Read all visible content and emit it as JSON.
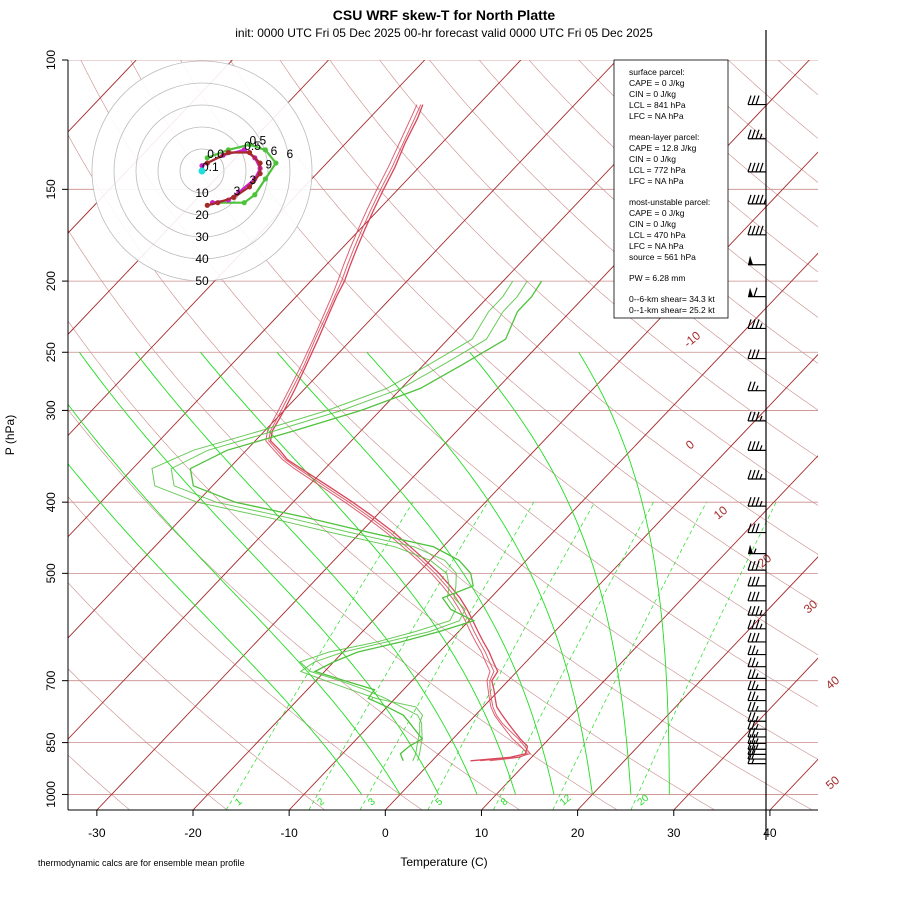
{
  "title": "CSU WRF skew-T for North Platte",
  "subtitle": "init: 0000 UTC Fri 05 Dec 2025     00-hr forecast valid 0000 UTC Fri 05 Dec 2025",
  "footnote": "thermodynamic calcs are for ensemble mean profile",
  "colors": {
    "temperature": "#d9465a",
    "dewpoint": "#4fc23c",
    "isotherm": "#a52a2a",
    "isobar": "#c98c8c",
    "dry_adiabat": "#c98c8c",
    "moist_adiabat": "#22dd22",
    "mixing_ratio": "#22dd22",
    "hodograph_ring": "#bbbbbb",
    "wind_barb": "#000000"
  },
  "info_box": {
    "surface": {
      "header": "surface parcel:",
      "cape": "CAPE = 0 J/kg",
      "cin": "CIN = 0 J/kg",
      "lcl": "LCL = 841 hPa",
      "lfc": "LFC = NA hPa"
    },
    "mixed": {
      "header": "mean-layer parcel:",
      "cape": "CAPE = 12.8 J/kg",
      "cin": "CIN = 0 J/kg",
      "lcl": "LCL = 772 hPa",
      "lfc": "LFC = NA hPa"
    },
    "mu": {
      "header": "most-unstable parcel:",
      "cape": "CAPE = 0 J/kg",
      "cin": "CIN = 0 J/kg",
      "lcl": "LCL = 470 hPa",
      "lfc": "LFC = NA hPa",
      "source": "source = 561 hPa"
    },
    "pw": "PW =  6.28 mm",
    "shear6": "0--6-km shear= 34.3 kt",
    "shear1": "0--1-km shear= 25.2 kt"
  },
  "chart_data": {
    "type": "line",
    "title": "CSU WRF skew-T for North Platte",
    "subtitle": "init: 0000 UTC Fri 05 Dec 2025     00-hr forecast valid 0000 UTC Fri 05 Dec 2025",
    "xlabel": "Temperature (C)",
    "ylabel": "P (hPa)",
    "x_ticks": [
      -30,
      -20,
      -10,
      0,
      10,
      20,
      30,
      40
    ],
    "x_tick_labels": [
      "-30",
      "-20",
      "-10",
      "0",
      "10",
      "20",
      "30",
      "40"
    ],
    "y_scale": "log",
    "y_ticks": [
      100,
      150,
      200,
      250,
      300,
      400,
      500,
      700,
      850,
      1000
    ],
    "y_tick_labels": [
      "100",
      "150",
      "200",
      "250",
      "300",
      "400",
      "500",
      "700",
      "850",
      "1000"
    ],
    "xlim": [
      -33,
      45
    ],
    "ylim": [
      1050,
      100
    ],
    "isotherm_labels": [
      "-10",
      "0",
      "10",
      "20",
      "30",
      "40",
      "50"
    ],
    "mixing_ratio_labels": [
      "1",
      "2",
      "3",
      "5",
      "8",
      "12",
      "20"
    ],
    "series": [
      {
        "kind": "temperature",
        "members": [
          {
            "p": [
              900,
              890,
              880,
              860,
              840,
              820,
              800,
              780,
              760,
              740,
              720,
              700,
              680,
              660,
              640,
              620,
              600,
              580,
              560,
              540,
              520,
              500,
              480,
              460,
              440,
              420,
              400,
              380,
              360,
              350,
              340,
              330,
              320,
              300,
              280,
              260,
              240,
              220,
              210,
              200,
              190,
              180,
              170,
              160,
              150,
              140,
              130,
              120,
              115
            ],
            "t": [
              4.0,
              7.8,
              9.0,
              8.5,
              7.0,
              5.6,
              4.2,
              2.8,
              1.4,
              0.4,
              -0.6,
              -1.7,
              -2.0,
              -3.4,
              -4.8,
              -6.4,
              -8.0,
              -9.6,
              -11.3,
              -13.2,
              -15.4,
              -17.8,
              -20.5,
              -23.4,
              -26.5,
              -30.0,
              -33.8,
              -38.0,
              -42.5,
              -44.8,
              -46.5,
              -48.4,
              -49.2,
              -50.0,
              -51.0,
              -52.2,
              -53.5,
              -55.0,
              -55.8,
              -56.5,
              -57.5,
              -58.5,
              -59.5,
              -60.5,
              -61.5,
              -62.5,
              -63.8,
              -65.0,
              -65.8
            ]
          },
          {
            "p": [
              900,
              890,
              880,
              860,
              840,
              820,
              800,
              780,
              760,
              740,
              720,
              700,
              680,
              660,
              640,
              620,
              600,
              580,
              560,
              540,
              520,
              500,
              480,
              460,
              440,
              420,
              400,
              380,
              360,
              350,
              340,
              330,
              320,
              300,
              280,
              260,
              240,
              220,
              210,
              200,
              190,
              180,
              170,
              160,
              150,
              140,
              130,
              120,
              115
            ],
            "t": [
              5.0,
              8.5,
              9.5,
              8.2,
              6.8,
              5.2,
              3.6,
              2.2,
              1.0,
              0.0,
              -1.0,
              -1.9,
              -2.4,
              -3.8,
              -5.2,
              -6.8,
              -8.4,
              -10.0,
              -11.7,
              -13.6,
              -15.8,
              -18.2,
              -20.9,
              -23.8,
              -26.9,
              -30.4,
              -34.2,
              -38.4,
              -42.8,
              -45.0,
              -46.8,
              -48.6,
              -49.4,
              -50.3,
              -51.3,
              -52.4,
              -53.8,
              -55.2,
              -56.0,
              -56.8,
              -57.8,
              -58.8,
              -59.8,
              -60.8,
              -61.8,
              -62.8,
              -64.0,
              -65.3,
              -66.0
            ]
          },
          {
            "p": [
              900,
              890,
              880,
              860,
              840,
              820,
              800,
              780,
              760,
              740,
              720,
              700,
              680,
              660,
              640,
              620,
              600,
              580,
              560,
              540,
              520,
              500,
              480,
              460,
              440,
              420,
              400,
              380,
              360,
              350,
              340,
              330,
              320,
              300,
              280,
              260,
              240,
              220,
              210,
              200,
              190,
              180,
              170,
              160,
              150,
              140,
              130,
              120,
              115
            ],
            "t": [
              6.0,
              8.8,
              9.2,
              7.8,
              6.2,
              4.8,
              3.4,
              2.0,
              0.8,
              -0.2,
              -1.2,
              -2.2,
              -2.8,
              -4.2,
              -5.6,
              -7.2,
              -8.8,
              -10.4,
              -12.1,
              -14.0,
              -16.2,
              -18.6,
              -21.3,
              -24.2,
              -27.3,
              -30.8,
              -34.6,
              -38.8,
              -43.2,
              -45.3,
              -47.1,
              -48.9,
              -49.7,
              -50.6,
              -51.6,
              -52.7,
              -54.0,
              -55.5,
              -56.3,
              -57.2,
              -58.2,
              -59.2,
              -60.2,
              -61.2,
              -62.2,
              -63.2,
              -64.4,
              -65.7,
              -66.4
            ]
          }
        ]
      },
      {
        "kind": "dewpoint",
        "members": [
          {
            "p": [
              900,
              880,
              860,
              840,
              820,
              800,
              780,
              760,
              740,
              720,
              700,
              680,
              660,
              640,
              620,
              600,
              580,
              560,
              540,
              520,
              500,
              480,
              460,
              440,
              420,
              400,
              380,
              360,
              340,
              320,
              300,
              280,
              260,
              240,
              220,
              210,
              200
            ],
            "t": [
              -3.0,
              -4.0,
              -3.8,
              -3.2,
              -4.6,
              -6.0,
              -7.5,
              -10.0,
              -12.8,
              -13.0,
              -17.0,
              -21.0,
              -20.0,
              -18.5,
              -15.0,
              -12.0,
              -9.5,
              -13.0,
              -15.0,
              -13.0,
              -14.5,
              -17.0,
              -21.0,
              -29.0,
              -37.0,
              -46.0,
              -52.0,
              -54.0,
              -52.0,
              -47.0,
              -42.0,
              -38.0,
              -36.0,
              -34.0,
              -35.5,
              -35.5,
              -36.0
            ]
          },
          {
            "p": [
              900,
              880,
              860,
              840,
              820,
              800,
              780,
              760,
              740,
              720,
              700,
              680,
              660,
              640,
              620,
              600,
              580,
              560,
              540,
              520,
              500,
              480,
              460,
              440,
              420,
              400,
              380,
              360,
              340,
              320,
              300,
              280,
              260,
              240,
              220,
              210,
              200
            ],
            "t": [
              -2.0,
              -2.4,
              -3.0,
              -3.6,
              -4.2,
              -5.0,
              -5.5,
              -7.0,
              -12.0,
              -15.5,
              -19.0,
              -22.5,
              -22.0,
              -20.0,
              -16.5,
              -13.0,
              -11.0,
              -11.5,
              -13.8,
              -14.8,
              -16.0,
              -18.5,
              -23.0,
              -31.0,
              -39.0,
              -48.0,
              -54.0,
              -56.0,
              -54.0,
              -49.0,
              -44.0,
              -40.0,
              -38.0,
              -36.0,
              -37.0,
              -37.0,
              -37.5
            ]
          },
          {
            "p": [
              900,
              880,
              860,
              840,
              820,
              800,
              780,
              760,
              740,
              720,
              700,
              680,
              660,
              640,
              620,
              600,
              580,
              560,
              540,
              520,
              500,
              480,
              460,
              440,
              420,
              400,
              380,
              360,
              340,
              320,
              300,
              280,
              260,
              240,
              220,
              210,
              200
            ],
            "t": [
              -1.5,
              -2.0,
              -2.6,
              -3.2,
              -4.0,
              -4.8,
              -6.0,
              -8.5,
              -11.0,
              -14.0,
              -17.5,
              -21.5,
              -23.5,
              -21.5,
              -17.5,
              -14.5,
              -12.0,
              -12.5,
              -14.5,
              -15.5,
              -17.0,
              -20.0,
              -25.0,
              -33.0,
              -41.0,
              -50.0,
              -56.0,
              -58.0,
              -55.5,
              -50.5,
              -45.5,
              -41.5,
              -39.5,
              -37.5,
              -38.5,
              -38.5,
              -39.0
            ]
          }
        ]
      }
    ],
    "wind_profile": [
      {
        "p": 115,
        "speed": 30
      },
      {
        "p": 128,
        "speed": 35
      },
      {
        "p": 142,
        "speed": 40
      },
      {
        "p": 157,
        "speed": 45
      },
      {
        "p": 173,
        "speed": 40
      },
      {
        "p": 190,
        "speed": 50
      },
      {
        "p": 210,
        "speed": 60
      },
      {
        "p": 232,
        "speed": 35
      },
      {
        "p": 255,
        "speed": 30
      },
      {
        "p": 282,
        "speed": 25
      },
      {
        "p": 310,
        "speed": 35
      },
      {
        "p": 340,
        "speed": 35
      },
      {
        "p": 372,
        "speed": 35
      },
      {
        "p": 405,
        "speed": 35
      },
      {
        "p": 440,
        "speed": 30
      },
      {
        "p": 470,
        "speed": 55
      },
      {
        "p": 495,
        "speed": 30
      },
      {
        "p": 520,
        "speed": 30
      },
      {
        "p": 545,
        "speed": 30
      },
      {
        "p": 570,
        "speed": 35
      },
      {
        "p": 595,
        "speed": 35
      },
      {
        "p": 620,
        "speed": 30
      },
      {
        "p": 645,
        "speed": 25
      },
      {
        "p": 670,
        "speed": 25
      },
      {
        "p": 695,
        "speed": 25
      },
      {
        "p": 720,
        "speed": 25
      },
      {
        "p": 745,
        "speed": 25
      },
      {
        "p": 770,
        "speed": 25
      },
      {
        "p": 795,
        "speed": 25
      },
      {
        "p": 815,
        "speed": 25
      },
      {
        "p": 835,
        "speed": 25
      },
      {
        "p": 852,
        "speed": 25
      },
      {
        "p": 868,
        "speed": 25
      },
      {
        "p": 882,
        "speed": 20
      },
      {
        "p": 895,
        "speed": 20
      },
      {
        "p": 908,
        "speed": 15
      }
    ],
    "hodograph": {
      "ring_labels": [
        "10",
        "20",
        "30",
        "40",
        "50"
      ],
      "ring_values_kt": [
        10,
        20,
        30,
        40,
        50
      ],
      "storm_motion": {
        "u": 0,
        "v": 0
      },
      "traces": [
        {
          "color": "#4fc23c",
          "points": [
            [
              1,
              5
            ],
            [
              5,
              8
            ],
            [
              9,
              10
            ],
            [
              12,
              8
            ],
            [
              14,
              3
            ],
            [
              12,
              -3
            ],
            [
              10,
              -9
            ],
            [
              8,
              -12
            ],
            [
              2,
              -12
            ]
          ]
        },
        {
          "color": "#cc22cc",
          "points": [
            [
              0,
              2
            ],
            [
              4,
              6
            ],
            [
              8,
              8
            ],
            [
              10,
              5
            ],
            [
              11,
              1
            ],
            [
              10,
              -3
            ],
            [
              7,
              -8
            ],
            [
              5,
              -11
            ],
            [
              2,
              -12
            ]
          ]
        },
        {
          "color": "#a52a2a",
          "points": [
            [
              1,
              3
            ],
            [
              5,
              7
            ],
            [
              9,
              7
            ],
            [
              11,
              3
            ],
            [
              11,
              -1
            ],
            [
              9,
              -6
            ],
            [
              6,
              -10
            ],
            [
              3,
              -12
            ],
            [
              1,
              -13
            ]
          ]
        }
      ],
      "point_labels": [
        {
          "text": "0.5",
          "color": "#cc22cc",
          "u": 8,
          "v": 8
        },
        {
          "text": "0.5",
          "color": "#4fc23c",
          "u": 9,
          "v": 10
        },
        {
          "text": "6",
          "color": "#4fc23c",
          "u": 16,
          "v": 5
        },
        {
          "text": "6",
          "color": "#cc22cc",
          "u": 13,
          "v": 6
        },
        {
          "text": "9",
          "color": "#cc22cc",
          "u": 12,
          "v": 1
        },
        {
          "text": "3",
          "color": "#cc22cc",
          "u": 9,
          "v": -5
        },
        {
          "text": "3",
          "color": "#4fc23c",
          "u": 6,
          "v": -9
        },
        {
          "text": "0.0",
          "color": "#4fc23c",
          "u": 1,
          "v": 5
        },
        {
          "text": "0.1",
          "color": "#cc22cc",
          "u": 0,
          "v": 0
        }
      ]
    }
  }
}
